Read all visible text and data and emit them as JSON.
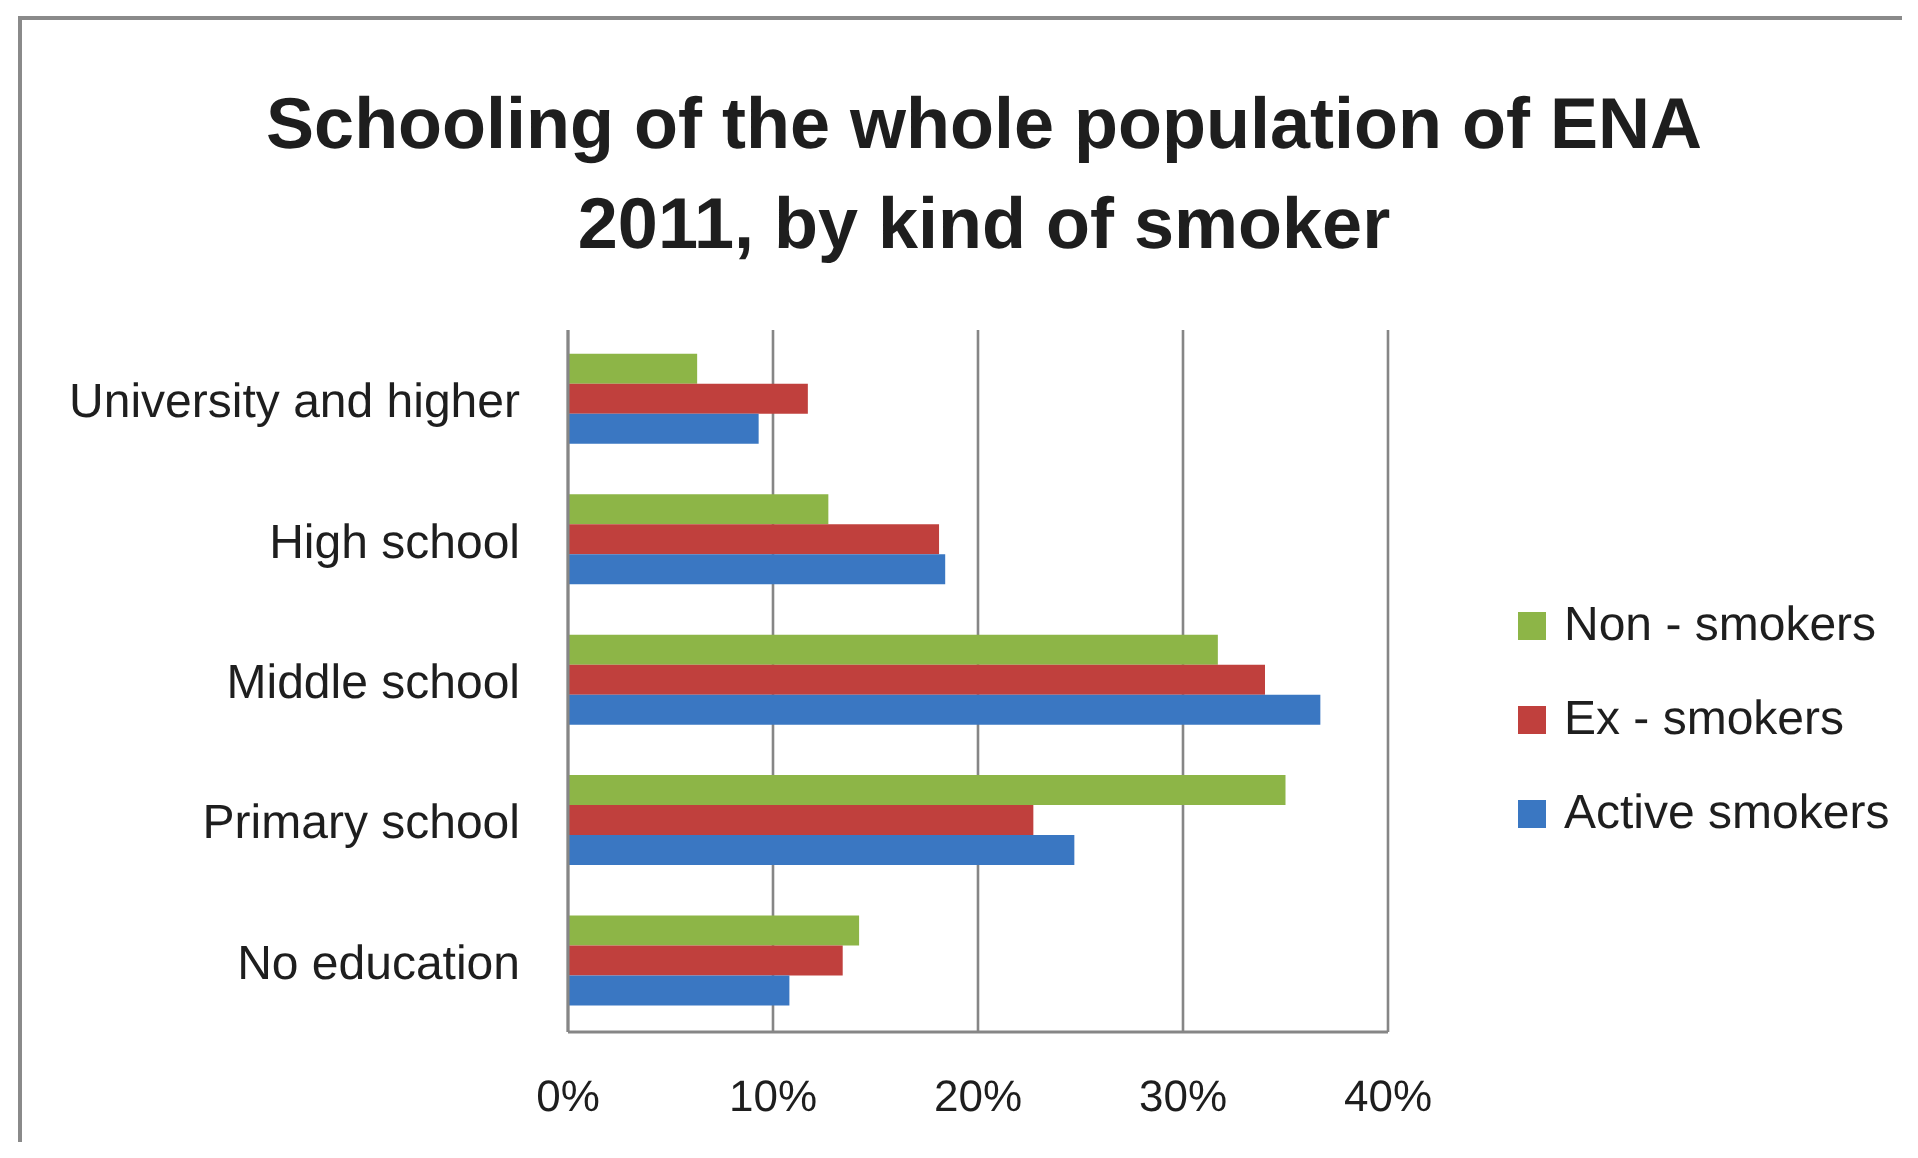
{
  "chart_data": {
    "type": "bar",
    "orientation": "horizontal",
    "title": "Schooling of the whole population of ENA 2011, by kind of smoker",
    "categories": [
      "University and higher",
      "High school",
      "Middle school",
      "Primary school",
      "No education"
    ],
    "series": [
      {
        "name": "Non - smokers",
        "color": "#8db547",
        "values": [
          6.3,
          12.7,
          31.7,
          35.0,
          14.2
        ]
      },
      {
        "name": "Ex - smokers",
        "color": "#c0403d",
        "values": [
          11.7,
          18.1,
          34.0,
          22.7,
          13.4
        ]
      },
      {
        "name": "Active smokers",
        "color": "#3a77c2",
        "values": [
          9.3,
          18.4,
          36.7,
          24.7,
          10.8
        ]
      }
    ],
    "xlim": [
      0,
      40
    ],
    "xticks": [
      {
        "value": 0,
        "label": "0%"
      },
      {
        "value": 10,
        "label": "10%"
      },
      {
        "value": 20,
        "label": "20%"
      },
      {
        "value": 30,
        "label": "30%"
      },
      {
        "value": 40,
        "label": "40%"
      }
    ],
    "grid": "x",
    "legend": "right"
  }
}
